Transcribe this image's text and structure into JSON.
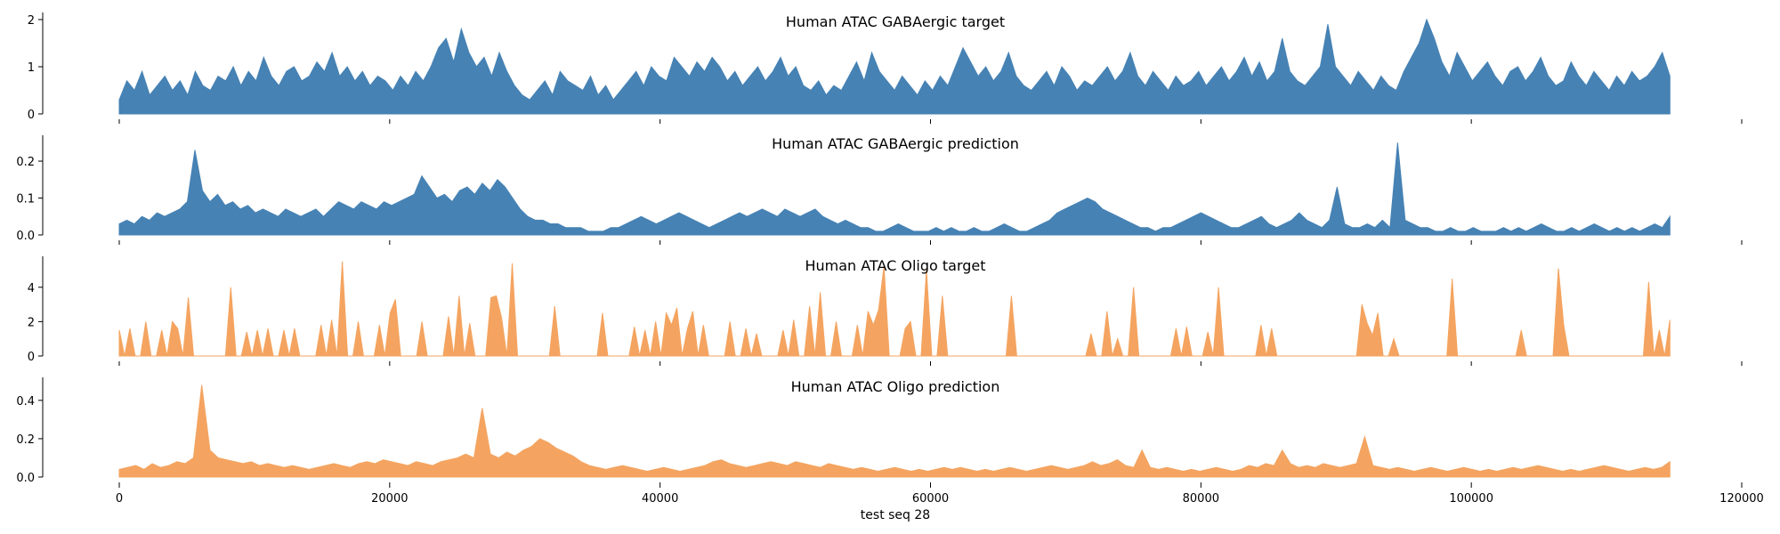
{
  "chart_data": {
    "type": "area",
    "x_range": [
      0,
      114688
    ],
    "xlabel": "test seq 28",
    "xlim": [
      0,
      120000
    ],
    "xticks": [
      0,
      20000,
      40000,
      60000,
      80000,
      100000,
      120000
    ],
    "x_tick_labels": [
      "0",
      "20000",
      "40000",
      "60000",
      "80000",
      "100000",
      "120000"
    ],
    "panels": [
      {
        "title": "Human ATAC GABAergic target",
        "color": "#4682b4",
        "ylim": [
          0,
          2.15
        ],
        "yticks": [
          0,
          1,
          2
        ],
        "y_tick_labels": [
          "0",
          "1",
          "2"
        ],
        "values": [
          0.3,
          0.7,
          0.5,
          0.9,
          0.4,
          0.6,
          0.8,
          0.5,
          0.7,
          0.4,
          0.9,
          0.6,
          0.5,
          0.8,
          0.7,
          1.0,
          0.6,
          0.9,
          0.7,
          1.2,
          0.8,
          0.6,
          0.9,
          1.0,
          0.7,
          0.8,
          1.1,
          0.9,
          1.3,
          0.8,
          1.0,
          0.7,
          0.9,
          0.6,
          0.8,
          0.7,
          0.5,
          0.8,
          0.6,
          0.9,
          0.7,
          1.0,
          1.4,
          1.6,
          1.1,
          1.8,
          1.3,
          1.0,
          1.2,
          0.8,
          1.3,
          0.9,
          0.6,
          0.4,
          0.3,
          0.5,
          0.7,
          0.4,
          0.9,
          0.7,
          0.6,
          0.5,
          0.8,
          0.4,
          0.6,
          0.3,
          0.5,
          0.7,
          0.9,
          0.6,
          1.0,
          0.8,
          0.7,
          1.2,
          1.0,
          0.8,
          1.1,
          0.9,
          1.2,
          1.0,
          0.7,
          0.9,
          0.6,
          0.8,
          1.0,
          0.7,
          0.9,
          1.2,
          0.8,
          1.0,
          0.6,
          0.5,
          0.7,
          0.4,
          0.6,
          0.5,
          0.8,
          1.1,
          0.7,
          1.3,
          0.9,
          0.7,
          0.5,
          0.8,
          0.6,
          0.4,
          0.7,
          0.5,
          0.8,
          0.6,
          1.0,
          1.4,
          1.1,
          0.8,
          1.0,
          0.7,
          0.9,
          1.3,
          0.8,
          0.6,
          0.5,
          0.7,
          0.9,
          0.6,
          1.0,
          0.8,
          0.5,
          0.7,
          0.6,
          0.8,
          1.0,
          0.7,
          0.9,
          1.3,
          0.8,
          0.6,
          0.9,
          0.7,
          0.5,
          0.8,
          0.6,
          0.7,
          0.9,
          0.6,
          0.8,
          1.0,
          0.7,
          0.9,
          1.2,
          0.8,
          1.1,
          0.7,
          0.9,
          1.6,
          0.9,
          0.7,
          0.6,
          0.8,
          1.0,
          1.9,
          1.0,
          0.8,
          0.6,
          0.9,
          0.7,
          0.5,
          0.8,
          0.6,
          0.5,
          0.9,
          1.2,
          1.5,
          2.0,
          1.6,
          1.1,
          0.8,
          1.3,
          1.0,
          0.7,
          0.9,
          1.1,
          0.8,
          0.6,
          0.9,
          1.0,
          0.7,
          0.9,
          1.2,
          0.8,
          0.6,
          0.7,
          1.1,
          0.8,
          0.6,
          0.9,
          0.7,
          0.5,
          0.8,
          0.6,
          0.9,
          0.7,
          0.8,
          1.0,
          1.3,
          0.8
        ]
      },
      {
        "title": "Human ATAC GABAergic prediction",
        "color": "#4682b4",
        "ylim": [
          0,
          0.27
        ],
        "yticks": [
          0,
          0.1,
          0.2
        ],
        "y_tick_labels": [
          "0.0",
          "0.1",
          "0.2"
        ],
        "values": [
          0.03,
          0.04,
          0.03,
          0.05,
          0.04,
          0.06,
          0.05,
          0.06,
          0.07,
          0.09,
          0.23,
          0.12,
          0.09,
          0.11,
          0.08,
          0.09,
          0.07,
          0.08,
          0.06,
          0.07,
          0.06,
          0.05,
          0.07,
          0.06,
          0.05,
          0.06,
          0.07,
          0.05,
          0.07,
          0.09,
          0.08,
          0.07,
          0.09,
          0.08,
          0.07,
          0.09,
          0.08,
          0.09,
          0.1,
          0.11,
          0.16,
          0.13,
          0.1,
          0.11,
          0.09,
          0.12,
          0.13,
          0.11,
          0.14,
          0.12,
          0.15,
          0.13,
          0.1,
          0.07,
          0.05,
          0.04,
          0.04,
          0.03,
          0.03,
          0.02,
          0.02,
          0.02,
          0.01,
          0.01,
          0.01,
          0.02,
          0.02,
          0.03,
          0.04,
          0.05,
          0.04,
          0.03,
          0.04,
          0.05,
          0.06,
          0.05,
          0.04,
          0.03,
          0.02,
          0.03,
          0.04,
          0.05,
          0.06,
          0.05,
          0.06,
          0.07,
          0.06,
          0.05,
          0.07,
          0.06,
          0.05,
          0.06,
          0.07,
          0.05,
          0.04,
          0.03,
          0.04,
          0.03,
          0.02,
          0.02,
          0.01,
          0.01,
          0.02,
          0.03,
          0.02,
          0.01,
          0.01,
          0.01,
          0.02,
          0.01,
          0.02,
          0.01,
          0.01,
          0.02,
          0.01,
          0.01,
          0.02,
          0.03,
          0.02,
          0.01,
          0.01,
          0.02,
          0.03,
          0.04,
          0.06,
          0.07,
          0.08,
          0.09,
          0.1,
          0.09,
          0.07,
          0.06,
          0.05,
          0.04,
          0.03,
          0.02,
          0.02,
          0.01,
          0.02,
          0.02,
          0.03,
          0.04,
          0.05,
          0.06,
          0.05,
          0.04,
          0.03,
          0.02,
          0.02,
          0.03,
          0.04,
          0.05,
          0.03,
          0.02,
          0.03,
          0.04,
          0.06,
          0.04,
          0.03,
          0.02,
          0.04,
          0.13,
          0.03,
          0.02,
          0.02,
          0.03,
          0.02,
          0.04,
          0.02,
          0.25,
          0.04,
          0.03,
          0.02,
          0.02,
          0.01,
          0.01,
          0.02,
          0.01,
          0.01,
          0.02,
          0.01,
          0.01,
          0.01,
          0.02,
          0.01,
          0.02,
          0.01,
          0.02,
          0.03,
          0.02,
          0.01,
          0.01,
          0.02,
          0.01,
          0.02,
          0.03,
          0.02,
          0.01,
          0.02,
          0.01,
          0.02,
          0.01,
          0.02,
          0.03,
          0.02,
          0.05
        ]
      },
      {
        "title": "Human ATAC Oligo target",
        "color": "#f4a460",
        "ylim": [
          0,
          5.8
        ],
        "yticks": [
          0,
          2,
          4
        ],
        "y_tick_labels": [
          "0",
          "2",
          "4"
        ],
        "values": [
          1.5,
          0,
          1.6,
          0,
          0,
          2.0,
          0,
          0,
          1.5,
          0,
          2.0,
          1.6,
          0,
          3.4,
          0,
          0,
          0,
          0,
          0,
          0,
          0,
          4.0,
          0,
          0,
          1.4,
          0,
          1.5,
          0,
          1.6,
          0,
          0,
          1.5,
          0,
          1.6,
          0,
          0,
          0,
          0,
          1.8,
          0,
          2.1,
          0,
          5.5,
          0,
          0,
          2.0,
          0,
          0,
          0,
          1.8,
          0,
          2.5,
          3.3,
          0,
          0,
          0,
          0,
          2.0,
          0,
          0,
          0,
          0,
          2.3,
          0,
          3.5,
          0,
          1.9,
          0,
          0,
          0,
          3.4,
          3.5,
          2.2,
          0,
          5.4,
          0,
          0,
          0,
          0,
          0,
          0,
          0,
          2.9,
          0,
          0,
          0,
          0,
          0,
          0,
          0,
          0,
          2.5,
          0,
          0,
          0,
          0,
          0,
          1.7,
          0,
          1.5,
          0,
          2.0,
          0,
          2.5,
          1.8,
          2.8,
          0,
          1.6,
          2.6,
          0,
          1.8,
          0,
          0,
          0,
          0,
          2.0,
          0,
          0,
          1.6,
          0,
          1.3,
          0,
          0,
          0,
          0,
          1.5,
          0,
          2.1,
          0,
          0,
          2.9,
          0,
          3.7,
          0,
          0,
          2.0,
          0,
          0,
          0,
          1.8,
          0,
          2.6,
          1.8,
          2.7,
          5.2,
          0,
          0,
          0,
          1.6,
          2.0,
          0,
          0,
          5.0,
          0,
          0,
          3.5,
          0,
          0,
          0,
          0,
          0,
          0,
          0,
          0,
          0,
          0,
          0,
          0,
          3.5,
          0,
          0,
          0,
          0,
          0,
          0,
          0,
          0,
          0,
          0,
          0,
          0,
          0,
          0,
          1.3,
          0,
          0,
          2.6,
          0,
          1.0,
          0,
          0,
          4.0,
          0,
          0,
          0,
          0,
          0,
          0,
          0,
          1.6,
          0,
          1.7,
          0,
          0,
          0,
          1.4,
          0,
          4.0,
          0,
          0,
          0,
          0,
          0,
          0,
          0,
          1.8,
          0,
          1.6,
          0,
          0,
          0,
          0,
          0,
          0,
          0,
          0,
          0,
          0,
          0,
          0,
          0,
          0,
          0,
          0,
          3.0,
          1.9,
          1.2,
          2.5,
          0,
          0,
          1.0,
          0,
          0,
          0,
          0,
          0,
          0,
          0,
          0,
          0,
          0,
          4.5,
          0,
          0,
          0,
          0,
          0,
          0,
          0,
          0,
          0,
          0,
          0,
          0,
          1.5,
          0,
          0,
          0,
          0,
          0,
          0,
          5.1,
          1.8,
          0,
          0,
          0,
          0,
          0,
          0,
          0,
          0,
          0,
          0,
          0,
          0,
          0,
          0,
          0,
          4.3,
          0,
          1.5,
          0,
          2.1
        ]
      },
      {
        "title": "Human ATAC Oligo prediction",
        "color": "#f4a460",
        "ylim": [
          0,
          0.52
        ],
        "yticks": [
          0,
          0.2,
          0.4
        ],
        "y_tick_labels": [
          "0.0",
          "0.2",
          "0.4"
        ],
        "values": [
          0.04,
          0.05,
          0.06,
          0.04,
          0.07,
          0.05,
          0.06,
          0.08,
          0.07,
          0.1,
          0.48,
          0.14,
          0.1,
          0.09,
          0.08,
          0.07,
          0.08,
          0.06,
          0.07,
          0.06,
          0.05,
          0.06,
          0.05,
          0.04,
          0.05,
          0.06,
          0.07,
          0.06,
          0.05,
          0.07,
          0.08,
          0.07,
          0.09,
          0.08,
          0.07,
          0.06,
          0.08,
          0.07,
          0.06,
          0.08,
          0.09,
          0.1,
          0.12,
          0.1,
          0.36,
          0.12,
          0.1,
          0.13,
          0.11,
          0.14,
          0.16,
          0.2,
          0.18,
          0.15,
          0.13,
          0.11,
          0.08,
          0.06,
          0.05,
          0.04,
          0.05,
          0.06,
          0.05,
          0.04,
          0.03,
          0.04,
          0.05,
          0.04,
          0.03,
          0.04,
          0.05,
          0.06,
          0.08,
          0.09,
          0.07,
          0.06,
          0.05,
          0.06,
          0.07,
          0.08,
          0.07,
          0.06,
          0.08,
          0.07,
          0.06,
          0.05,
          0.07,
          0.06,
          0.05,
          0.04,
          0.05,
          0.04,
          0.03,
          0.04,
          0.05,
          0.04,
          0.03,
          0.04,
          0.03,
          0.04,
          0.05,
          0.04,
          0.05,
          0.04,
          0.03,
          0.04,
          0.03,
          0.04,
          0.05,
          0.04,
          0.03,
          0.04,
          0.05,
          0.06,
          0.05,
          0.04,
          0.05,
          0.06,
          0.08,
          0.06,
          0.07,
          0.09,
          0.06,
          0.05,
          0.14,
          0.05,
          0.04,
          0.05,
          0.04,
          0.03,
          0.04,
          0.03,
          0.04,
          0.05,
          0.04,
          0.03,
          0.04,
          0.06,
          0.05,
          0.07,
          0.06,
          0.14,
          0.07,
          0.05,
          0.06,
          0.05,
          0.07,
          0.06,
          0.05,
          0.06,
          0.07,
          0.21,
          0.06,
          0.05,
          0.04,
          0.05,
          0.04,
          0.03,
          0.04,
          0.05,
          0.04,
          0.03,
          0.04,
          0.05,
          0.04,
          0.03,
          0.04,
          0.03,
          0.04,
          0.05,
          0.04,
          0.05,
          0.06,
          0.05,
          0.04,
          0.03,
          0.04,
          0.03,
          0.04,
          0.05,
          0.06,
          0.05,
          0.04,
          0.03,
          0.04,
          0.05,
          0.04,
          0.05,
          0.08
        ]
      }
    ]
  }
}
